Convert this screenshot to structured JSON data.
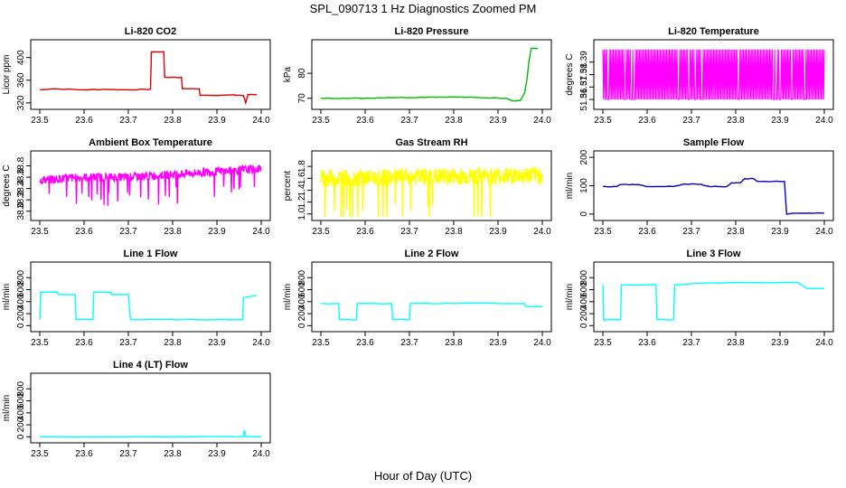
{
  "title": "SPL_090713  1 Hz Diagnostics Zoomed PM",
  "xlabel": "Hour of Day (UTC)",
  "x_ticks": [
    "23.5",
    "23.6",
    "23.7",
    "23.8",
    "23.9",
    "24.0"
  ],
  "chart_data": [
    {
      "type": "line",
      "title": "Li-820 CO2",
      "ylabel": "Licor ppm",
      "xlim": [
        23.5,
        24.0
      ],
      "ylim": [
        315,
        425
      ],
      "yticks": [
        "320",
        "360",
        "400"
      ],
      "color": "#dd0000",
      "series": [
        {
          "x": [
            23.5,
            23.53,
            23.6,
            23.65,
            23.7,
            23.75,
            23.752,
            23.76,
            23.78,
            23.782,
            23.8,
            23.82,
            23.822,
            23.84,
            23.86,
            23.862,
            23.89,
            23.92,
            23.94,
            23.96,
            23.965,
            23.97,
            23.99
          ],
          "y": [
            343,
            345,
            343,
            344,
            343,
            344,
            410,
            410,
            410,
            365,
            365,
            365,
            345,
            345,
            345,
            333,
            333,
            334,
            334,
            333,
            320,
            335,
            334
          ]
        }
      ]
    },
    {
      "type": "line",
      "title": "Li-820 Pressure",
      "ylabel": "kPa",
      "xlim": [
        23.5,
        24.0
      ],
      "ylim": [
        67,
        92
      ],
      "yticks": [
        "70",
        "80"
      ],
      "color": "#00bb00",
      "series": [
        {
          "x": [
            23.5,
            23.55,
            23.6,
            23.65,
            23.7,
            23.75,
            23.8,
            23.85,
            23.9,
            23.92,
            23.93,
            23.95,
            23.96,
            23.965,
            23.97,
            23.975,
            23.98,
            23.99
          ],
          "y": [
            70.0,
            70.0,
            70.0,
            70.3,
            70.3,
            70.5,
            70.5,
            70.3,
            70.1,
            70.0,
            69.0,
            69.0,
            72,
            77,
            85,
            90,
            90,
            90
          ]
        }
      ]
    },
    {
      "type": "line",
      "title": "Li-820 Temperature",
      "ylabel": "degrees C",
      "xlim": [
        23.5,
        24.0
      ],
      "ylim": [
        51.355,
        51.405
      ],
      "yticks": [
        "51.36",
        "51.37",
        "51.38",
        "51.39"
      ],
      "color": "#ff00ff",
      "series": [
        {
          "x": [
            23.5,
            24.0
          ],
          "y": [
            51.36,
            51.4
          ],
          "pattern": "oscillating between 51.36 and 51.40"
        }
      ]
    },
    {
      "type": "line",
      "title": "Ambient Box Temperature",
      "ylabel": "degrees C",
      "xlim": [
        23.5,
        24.0
      ],
      "ylim": [
        37.9,
        39.0
      ],
      "yticks": [
        "38.0",
        "38.2",
        "38.4",
        "38.6",
        "38.8"
      ],
      "color": "#ff00ff",
      "series": [
        {
          "x": [
            23.5,
            23.6,
            23.7,
            23.8,
            23.9,
            24.0
          ],
          "y": [
            38.55,
            38.6,
            38.6,
            38.65,
            38.7,
            38.75
          ],
          "noise": 0.15
        }
      ]
    },
    {
      "type": "line",
      "title": "Gas Stream RH",
      "ylabel": "percent",
      "xlim": [
        23.5,
        24.0
      ],
      "ylim": [
        0.95,
        2.0
      ],
      "yticks": [
        "1.0",
        "1.2",
        "1.4",
        "1.6",
        "1.8"
      ],
      "color": "#ffff00",
      "series": [
        {
          "x": [
            23.5,
            24.0
          ],
          "y": [
            1.6,
            1.65
          ],
          "noise": 0.3
        }
      ]
    },
    {
      "type": "line",
      "title": "Sample Flow",
      "ylabel": "ml/min",
      "xlim": [
        23.5,
        24.0
      ],
      "ylim": [
        -10,
        210
      ],
      "yticks": [
        "0",
        "100",
        "200"
      ],
      "color": "#0000cc",
      "series": [
        {
          "x": [
            23.5,
            23.53,
            23.54,
            23.58,
            23.6,
            23.66,
            23.68,
            23.72,
            23.74,
            23.78,
            23.79,
            23.81,
            23.82,
            23.84,
            23.85,
            23.9,
            23.91,
            23.915,
            23.93,
            24.0
          ],
          "y": [
            97,
            97,
            104,
            104,
            97,
            97,
            105,
            105,
            97,
            97,
            110,
            110,
            125,
            125,
            115,
            115,
            115,
            0,
            3,
            3
          ]
        }
      ]
    },
    {
      "type": "line",
      "title": "Line 1 Flow",
      "ylabel": "ml/min",
      "xlim": [
        23.5,
        24.0
      ],
      "ylim": [
        -40,
        1000
      ],
      "yticks": [
        "0",
        "200",
        "400",
        "600",
        "800"
      ],
      "color": "#00ffff",
      "series": [
        {
          "x": [
            23.5,
            23.502,
            23.54,
            23.542,
            23.58,
            23.582,
            23.62,
            23.622,
            23.66,
            23.662,
            23.7,
            23.705,
            23.8,
            23.9,
            23.958,
            23.96,
            23.99
          ],
          "y": [
            100,
            560,
            560,
            520,
            520,
            100,
            100,
            560,
            560,
            520,
            520,
            100,
            100,
            100,
            100,
            470,
            500
          ]
        }
      ]
    },
    {
      "type": "line",
      "title": "Line 2 Flow",
      "ylabel": "ml/min",
      "xlim": [
        23.5,
        24.0
      ],
      "ylim": [
        -40,
        1000
      ],
      "yticks": [
        "0",
        "200",
        "400",
        "600",
        "800"
      ],
      "color": "#00ffff",
      "series": [
        {
          "x": [
            23.5,
            23.54,
            23.542,
            23.58,
            23.582,
            23.66,
            23.662,
            23.7,
            23.702,
            23.8,
            23.9,
            23.96,
            23.962,
            24.0
          ],
          "y": [
            370,
            370,
            100,
            100,
            370,
            370,
            100,
            100,
            370,
            370,
            370,
            370,
            320,
            320
          ]
        }
      ]
    },
    {
      "type": "line",
      "title": "Line 3 Flow",
      "ylabel": "ml/min",
      "xlim": [
        23.5,
        24.0
      ],
      "ylim": [
        -40,
        1000
      ],
      "yticks": [
        "0",
        "200",
        "400",
        "600",
        "800"
      ],
      "color": "#00ffff",
      "series": [
        {
          "x": [
            23.5,
            23.502,
            23.504,
            23.54,
            23.542,
            23.62,
            23.622,
            23.66,
            23.662,
            23.7,
            23.8,
            23.9,
            23.94,
            23.96,
            24.0
          ],
          "y": [
            680,
            100,
            100,
            100,
            680,
            680,
            100,
            100,
            680,
            700,
            720,
            720,
            720,
            620,
            620
          ]
        }
      ]
    },
    {
      "type": "line",
      "title": "Line 4 (LT) Flow",
      "ylabel": "ml/min",
      "xlim": [
        23.5,
        24.0
      ],
      "ylim": [
        -40,
        1000
      ],
      "yticks": [
        "0",
        "200",
        "400",
        "600",
        "800"
      ],
      "color": "#00ffff",
      "series": [
        {
          "x": [
            23.5,
            23.96,
            23.961,
            23.963,
            23.965,
            24.0
          ],
          "y": [
            0,
            0,
            90,
            90,
            0,
            0
          ]
        }
      ]
    }
  ]
}
